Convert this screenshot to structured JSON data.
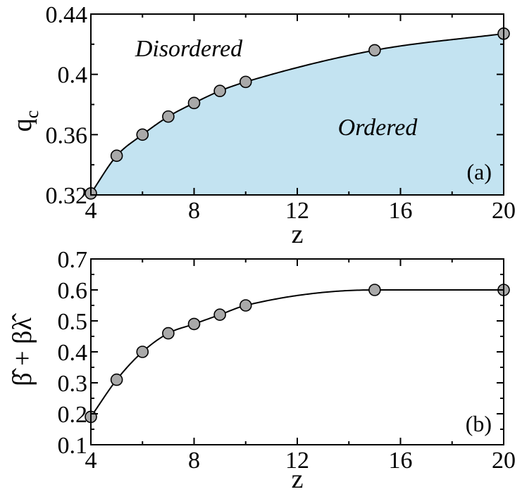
{
  "chart_data": [
    {
      "type": "line",
      "panel_label": "(a)",
      "xlabel": "z",
      "ylabel": "q",
      "ylabel_subscript": "c",
      "xlim": [
        4,
        20
      ],
      "ylim": [
        0.32,
        0.44
      ],
      "xticks": [
        4,
        8,
        12,
        16,
        20
      ],
      "yticks": [
        0.32,
        0.36,
        0.4,
        0.44
      ],
      "ytick_labels": [
        "0.32",
        "0.36",
        "0.4",
        "0.44"
      ],
      "grid": false,
      "fill_below_curve": true,
      "fill_color": "#c3e3f1",
      "marker_fill": "#a9a9a9",
      "points": {
        "x": [
          4,
          5,
          6,
          7,
          8,
          9,
          10,
          15,
          20
        ],
        "y": [
          0.321,
          0.346,
          0.36,
          0.372,
          0.381,
          0.389,
          0.395,
          0.416,
          0.427
        ]
      },
      "annotations": [
        {
          "text": "Disordered",
          "x": 7.9,
          "y": 0.415
        },
        {
          "text": "Ordered",
          "x": 14.9,
          "y": 0.371
        }
      ]
    },
    {
      "type": "line",
      "panel_label": "(b)",
      "xlabel": "z",
      "ylabel": "β̂ + βλ̂",
      "xlim": [
        4,
        20
      ],
      "ylim": [
        0.1,
        0.7
      ],
      "xticks": [
        4,
        8,
        12,
        16,
        20
      ],
      "yticks": [
        0.1,
        0.2,
        0.3,
        0.4,
        0.5,
        0.6,
        0.7
      ],
      "ytick_labels": [
        "0.1",
        "0.2",
        "0.3",
        "0.4",
        "0.5",
        "0.6",
        "0.7"
      ],
      "grid": false,
      "marker_fill": "#a9a9a9",
      "points": {
        "x": [
          4,
          5,
          6,
          7,
          8,
          9,
          10,
          15,
          20
        ],
        "y": [
          0.19,
          0.31,
          0.4,
          0.46,
          0.49,
          0.52,
          0.55,
          0.6,
          0.6
        ]
      }
    }
  ]
}
